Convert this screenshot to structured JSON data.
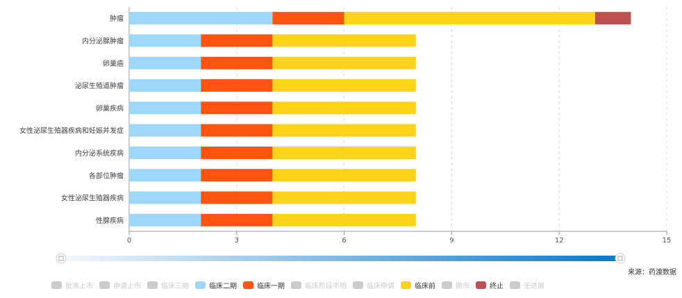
{
  "chart_data": {
    "type": "bar",
    "orientation": "horizontal",
    "stacked": true,
    "categories": [
      "肿瘤",
      "内分泌腺肿瘤",
      "卵巢癌",
      "泌尿生殖道肿瘤",
      "卵巢疾病",
      "女性泌尿生殖器疾病和妊娠并发症",
      "内分泌系统疾病",
      "各部位肿瘤",
      "女性泌尿生殖器疾病",
      "性腺疾病"
    ],
    "series": [
      {
        "name": "临床二期",
        "color": "#9dd8fb",
        "values": [
          4,
          2,
          2,
          2,
          2,
          2,
          2,
          2,
          2,
          2
        ]
      },
      {
        "name": "临床一期",
        "color": "#ff5511",
        "values": [
          2,
          2,
          2,
          2,
          2,
          2,
          2,
          2,
          2,
          2
        ]
      },
      {
        "name": "临床前",
        "color": "#fdd31c",
        "values": [
          7,
          4,
          4,
          4,
          4,
          4,
          4,
          4,
          4,
          4
        ]
      },
      {
        "name": "终止",
        "color": "#c0504d",
        "values": [
          1,
          0,
          0,
          0,
          0,
          0,
          0,
          0,
          0,
          0
        ]
      }
    ],
    "xlim": [
      0,
      15
    ],
    "xticks": [
      "0",
      "3",
      "6",
      "9",
      "12",
      "15"
    ],
    "grid": "vertical dashed"
  },
  "legend": {
    "items": [
      {
        "label": "批准上市",
        "color": "#cccccc",
        "active": false
      },
      {
        "label": "申请上市",
        "color": "#cccccc",
        "active": false
      },
      {
        "label": "临床三期",
        "color": "#cccccc",
        "active": false
      },
      {
        "label": "临床二期",
        "color": "#9dd8fb",
        "active": true
      },
      {
        "label": "临床一期",
        "color": "#ff5511",
        "active": true
      },
      {
        "label": "临床阶段不明",
        "color": "#cccccc",
        "active": false
      },
      {
        "label": "临床申请",
        "color": "#cccccc",
        "active": false
      },
      {
        "label": "临床前",
        "color": "#fdd31c",
        "active": true
      },
      {
        "label": "撤市",
        "color": "#cccccc",
        "active": false
      },
      {
        "label": "终止",
        "color": "#c0504d",
        "active": true
      },
      {
        "label": "无进展",
        "color": "#cccccc",
        "active": false
      }
    ]
  },
  "source": "来源：药渡数据",
  "zoom_slider": {
    "start": 0,
    "end": 100
  }
}
